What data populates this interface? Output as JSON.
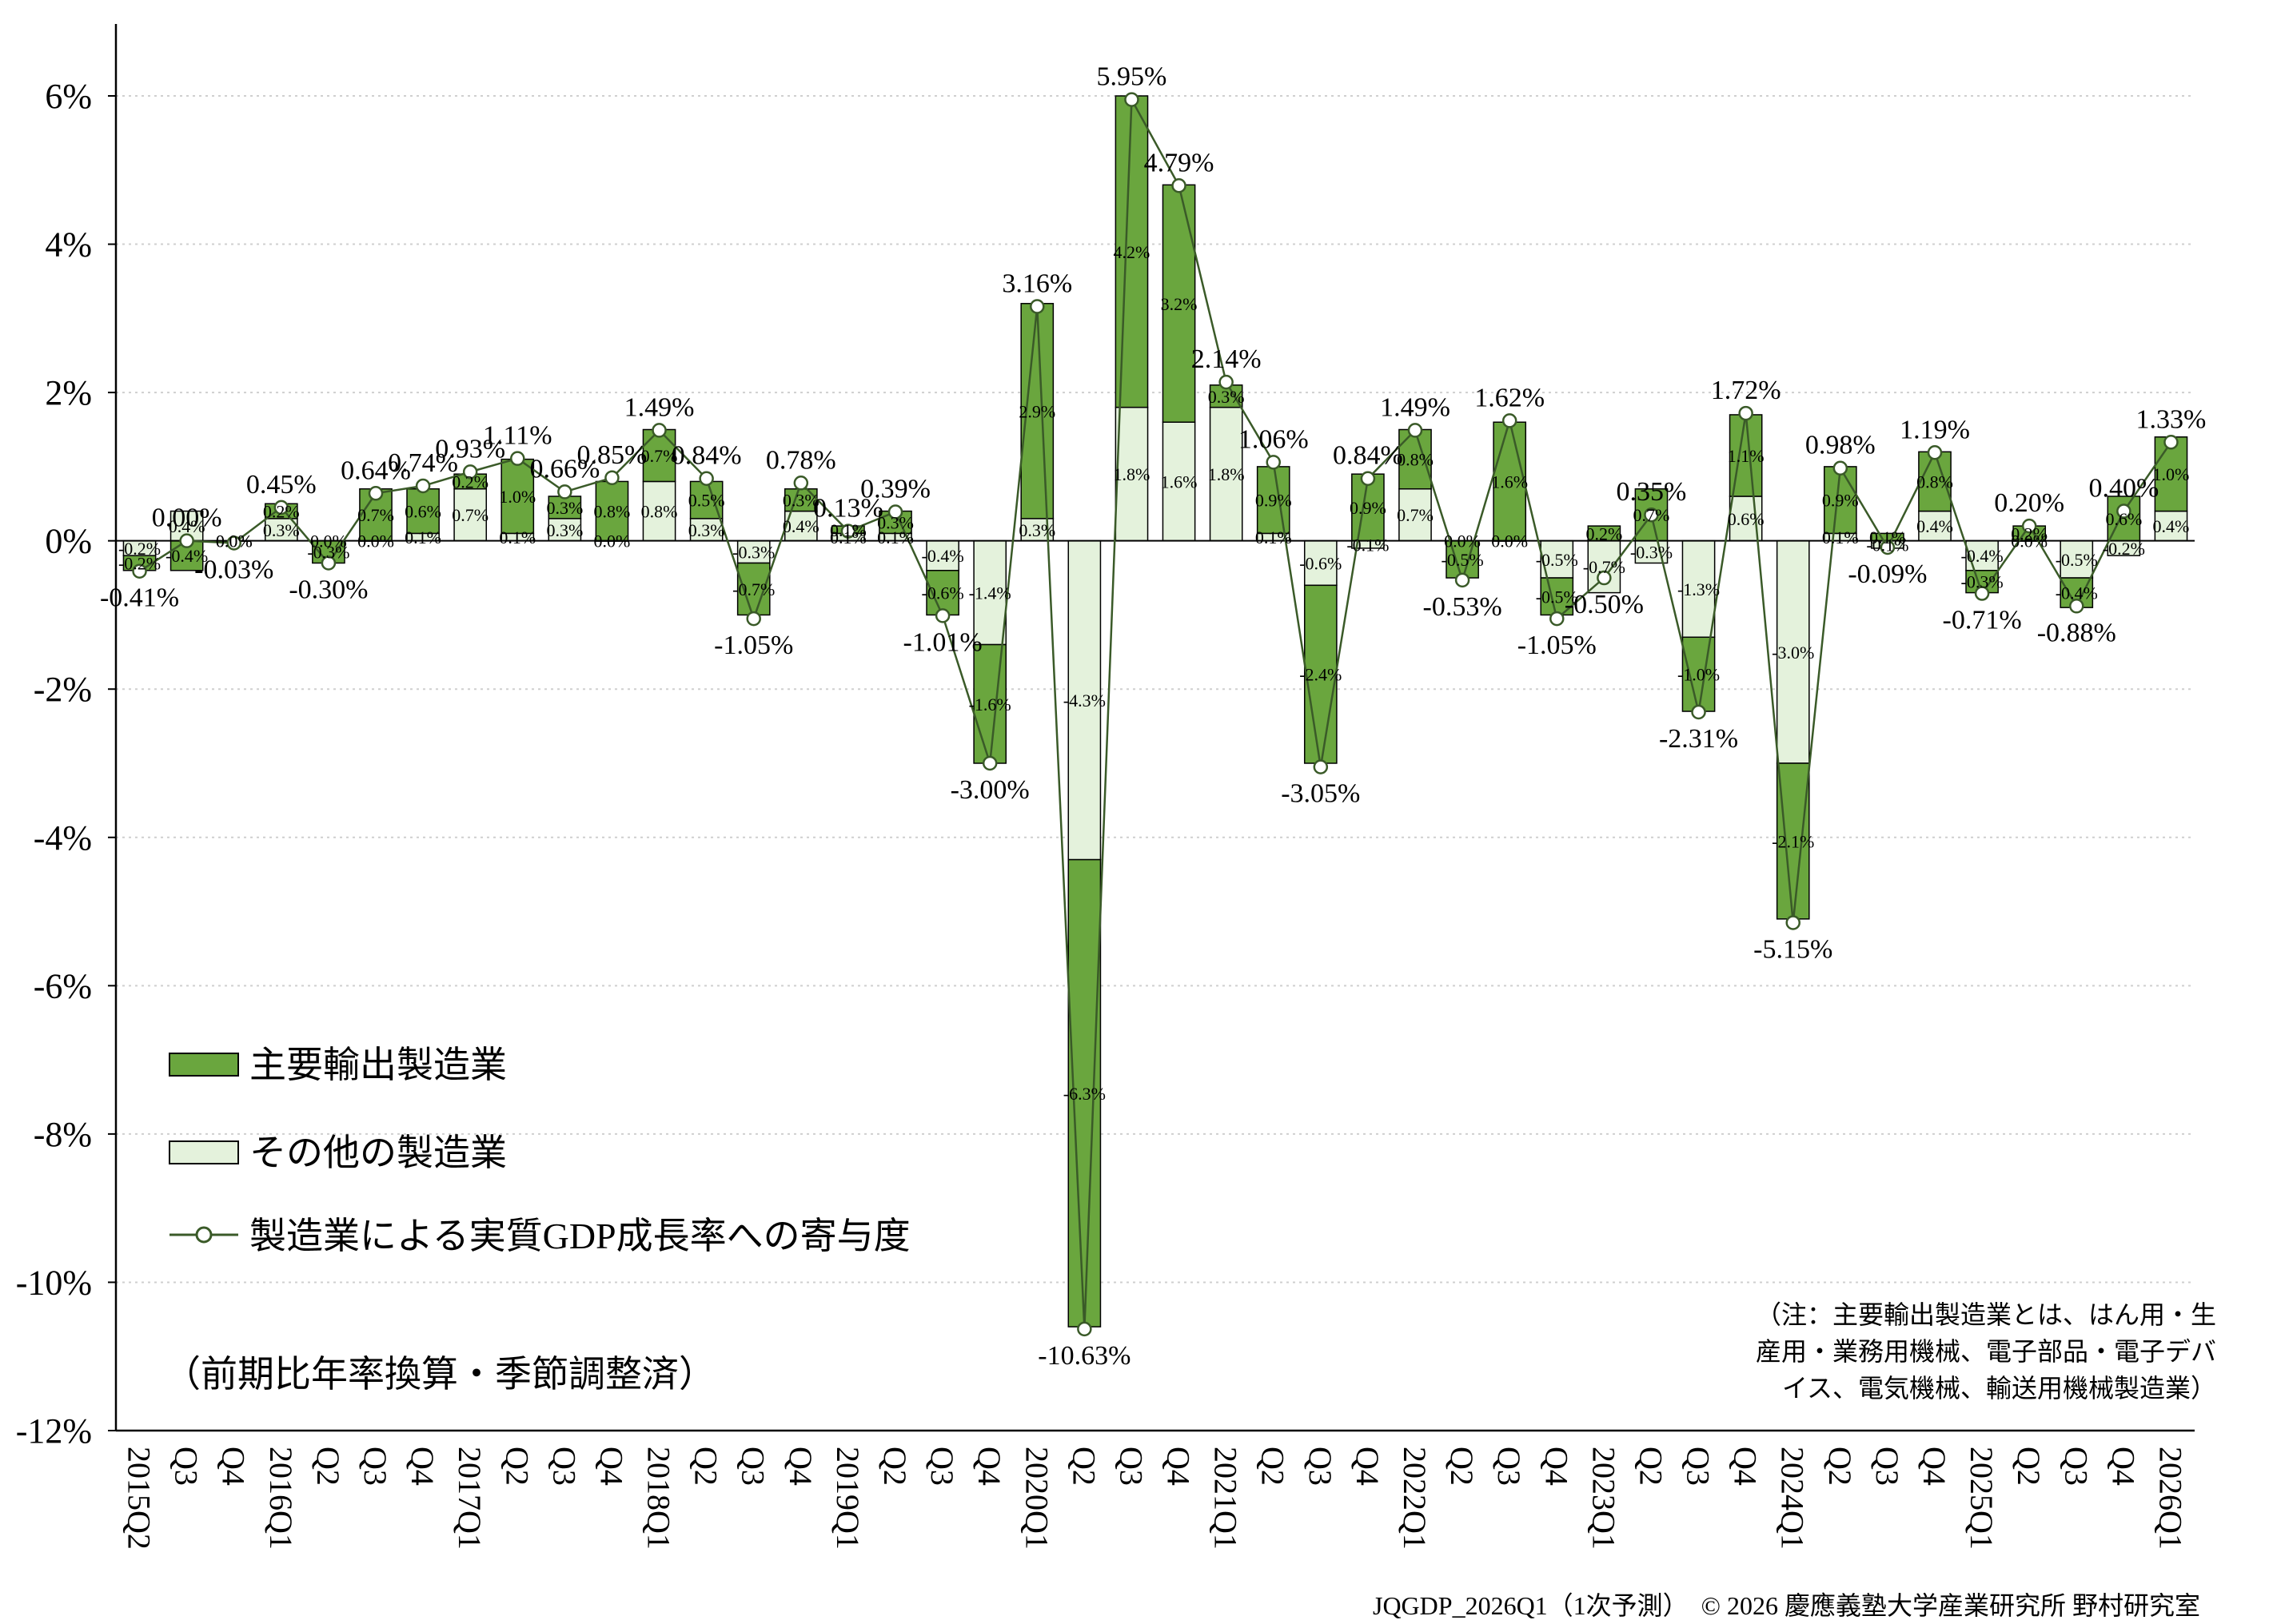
{
  "chart_data": {
    "type": "bar",
    "categories": [
      "2015Q2",
      "Q3",
      "Q4",
      "2016Q1",
      "Q2",
      "Q3",
      "Q4",
      "2017Q1",
      "Q2",
      "Q3",
      "Q4",
      "2018Q1",
      "Q2",
      "Q3",
      "Q4",
      "2019Q1",
      "Q2",
      "Q3",
      "Q4",
      "2020Q1",
      "Q2",
      "Q3",
      "Q4",
      "2021Q1",
      "Q2",
      "Q3",
      "Q4",
      "2022Q1",
      "Q2",
      "Q3",
      "Q4",
      "2023Q1",
      "Q2",
      "Q3",
      "Q4",
      "2024Q1",
      "Q2",
      "Q3",
      "Q4",
      "2025Q1",
      "Q2",
      "Q3",
      "Q4",
      "2026Q1"
    ],
    "series": [
      {
        "name": "主要輸出製造業",
        "kind": "stacked-bar",
        "color": "#6aa63e",
        "values": [
          -0.2,
          -0.4,
          0.0,
          0.2,
          -0.3,
          0.7,
          0.6,
          0.2,
          1.0,
          0.3,
          0.8,
          0.7,
          0.5,
          -0.7,
          0.3,
          0.1,
          0.3,
          -0.6,
          -1.6,
          2.9,
          -6.3,
          4.2,
          3.2,
          0.3,
          0.9,
          -2.4,
          0.9,
          0.8,
          -0.5,
          1.6,
          -0.5,
          0.2,
          0.7,
          -1.0,
          1.1,
          -2.1,
          0.9,
          0.1,
          0.8,
          -0.3,
          0.2,
          -0.4,
          0.6,
          1.0
        ],
        "labels": [
          "-0.2%",
          "-0.4%",
          "0.0%",
          "0.2%",
          "-0.3%",
          "0.7%",
          "0.6%",
          "0.2%",
          "1.0%",
          "0.3%",
          "0.8%",
          "0.7%",
          "0.5%",
          "-0.7%",
          "0.3%",
          "0.1%",
          "0.3%",
          "-0.6%",
          "-1.6%",
          "2.9%",
          "-6.3%",
          "4.2%",
          "3.2%",
          "0.3%",
          "0.9%",
          "-2.4%",
          "0.9%",
          "0.8%",
          "-0.5%",
          "1.6%",
          "-0.5%",
          "0.2%",
          "0.7%",
          "-1.0%",
          "1.1%",
          "-2.1%",
          "0.9%",
          "0.1%",
          "0.8%",
          "-0.3%",
          "0.2%",
          "-0.4%",
          "0.6%",
          "1.0%"
        ]
      },
      {
        "name": "その他の製造業",
        "kind": "stacked-bar",
        "color": "#e4f2dc",
        "values": [
          -0.2,
          0.4,
          0.0,
          0.3,
          0.0,
          0.0,
          0.1,
          0.7,
          0.1,
          0.3,
          0.0,
          0.8,
          0.3,
          -0.3,
          0.4,
          0.1,
          0.1,
          -0.4,
          -1.4,
          0.3,
          -4.3,
          1.8,
          1.6,
          1.8,
          0.1,
          -0.6,
          -0.1,
          0.7,
          0.0,
          0.0,
          -0.5,
          -0.7,
          -0.3,
          -1.3,
          0.6,
          -3.0,
          0.1,
          -0.1,
          0.4,
          -0.4,
          0.0,
          -0.5,
          -0.2,
          0.4
        ],
        "labels": [
          "-0.2%",
          "0.4%",
          "0.0%",
          "0.3%",
          "0.0%",
          "0.0%",
          "0.1%",
          "0.7%",
          "0.1%",
          "0.3%",
          "0.0%",
          "0.8%",
          "0.3%",
          "-0.3%",
          "0.4%",
          "0.1%",
          "0.1%",
          "-0.4%",
          "-1.4%",
          "0.3%",
          "-4.3%",
          "1.8%",
          "1.6%",
          "1.8%",
          "0.1%",
          "-0.6%",
          "-0.1%",
          "0.7%",
          "0.0%",
          "0.0%",
          "-0.5%",
          "-0.7%",
          "-0.3%",
          "-1.3%",
          "0.6%",
          "-3.0%",
          "0.1%",
          "-0.1%",
          "0.4%",
          "-0.4%",
          "0.0%",
          "-0.5%",
          "-0.2%",
          "0.4%"
        ]
      },
      {
        "name": "製造業による実質GDP成長率への寄与度",
        "kind": "line",
        "color": "#3a5a28",
        "values": [
          -0.41,
          0.0,
          -0.03,
          0.45,
          -0.3,
          0.64,
          0.74,
          0.93,
          1.11,
          0.66,
          0.85,
          1.49,
          0.84,
          -1.05,
          0.78,
          0.13,
          0.39,
          -1.01,
          -3.0,
          3.16,
          -10.63,
          5.95,
          4.79,
          2.14,
          1.06,
          -3.05,
          0.84,
          1.49,
          -0.53,
          1.62,
          -1.05,
          -0.5,
          0.35,
          -2.31,
          1.72,
          -5.15,
          0.98,
          -0.09,
          1.19,
          -0.71,
          0.2,
          -0.88,
          0.4,
          1.33
        ],
        "labels": [
          "-0.41%",
          "0.00%",
          "-0.03%",
          "0.45%",
          "-0.30%",
          "0.64%",
          "0.74%",
          "0.93%",
          "1.11%",
          "0.66%",
          "0.85%",
          "1.49%",
          "0.84%",
          "-1.05%",
          "0.78%",
          "0.13%",
          "0.39%",
          "-1.01%",
          "-3.00%",
          "3.16%",
          "-10.63%",
          "5.95%",
          "4.79%",
          "2.14%",
          "1.06%",
          "-3.05%",
          "0.84%",
          "1.49%",
          "-0.53%",
          "1.62%",
          "-1.05%",
          "-0.50%",
          "0.35%",
          "-2.31%",
          "1.72%",
          "-5.15%",
          "0.98%",
          "-0.09%",
          "1.19%",
          "-0.71%",
          "0.20%",
          "-0.88%",
          "0.40%",
          "1.33%"
        ]
      }
    ],
    "ylim": [
      -12,
      7
    ],
    "yticks": [
      6,
      4,
      2,
      0,
      -2,
      -4,
      -6,
      -8,
      -10,
      -12
    ],
    "ytick_labels": [
      "6%",
      "4%",
      "2%",
      "0%",
      "-2%",
      "-4%",
      "-6%",
      "-8%",
      "-10%",
      "-12%"
    ],
    "grid": true,
    "legend_position": "bottom-left",
    "unit_note": "（前期比年率換算・季節調整済）",
    "note_lines": [
      "（注：主要輸出製造業とは、はん用・生",
      "産用・業務用機械、電子部品・電子デバ",
      "イス、電気機械、輸送用機械製造業）"
    ],
    "footer": "JQGDP_2026Q1（1次予測）　© 2026 慶應義塾大学産業研究所 野村研究室"
  }
}
